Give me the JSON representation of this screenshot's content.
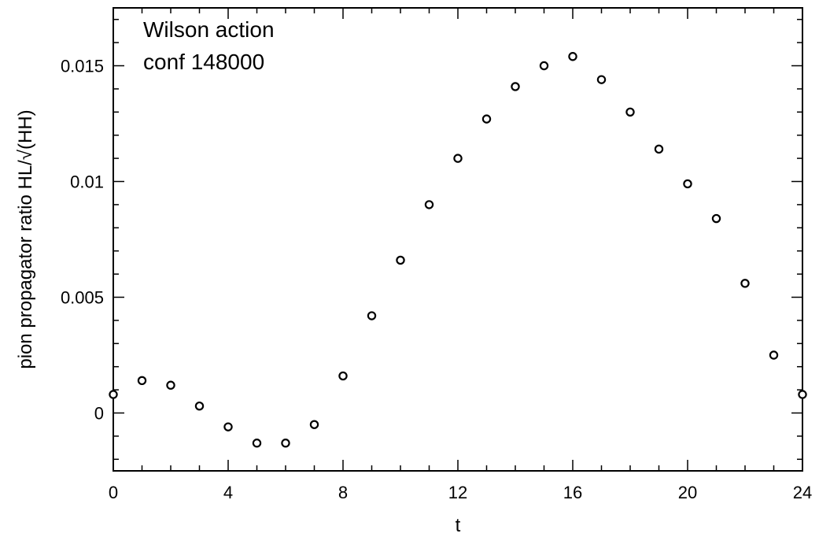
{
  "chart_data": {
    "type": "scatter",
    "title": "",
    "annotations": [
      "Wilson action",
      "conf 148000"
    ],
    "xlabel": "t",
    "ylabel": "pion propagator ratio  HL/√(HH)",
    "xlim": [
      0,
      24
    ],
    "ylim": [
      -0.0025,
      0.0175
    ],
    "xticks": [
      0,
      4,
      8,
      12,
      16,
      20,
      24
    ],
    "xtick_labels": [
      "0",
      "4",
      "8",
      "12",
      "16",
      "20",
      "24"
    ],
    "yticks": [
      0,
      0.005,
      0.01,
      0.015
    ],
    "ytick_labels": [
      "0",
      "0.005",
      "0.01",
      "0.015"
    ],
    "marker": "open-circle",
    "grid": false,
    "x": [
      0,
      1,
      2,
      3,
      4,
      5,
      6,
      7,
      8,
      9,
      10,
      11,
      12,
      13,
      14,
      15,
      16,
      17,
      18,
      19,
      20,
      21,
      22,
      23,
      24
    ],
    "y": [
      0.0008,
      0.0014,
      0.0012,
      0.0003,
      -0.0006,
      -0.0013,
      -0.0013,
      -0.0005,
      0.0016,
      0.0042,
      0.0066,
      0.009,
      0.011,
      0.0127,
      0.0141,
      0.015,
      0.0154,
      0.0144,
      0.013,
      0.0114,
      0.0099,
      0.0084,
      0.0056,
      0.0025,
      0.0008
    ]
  }
}
